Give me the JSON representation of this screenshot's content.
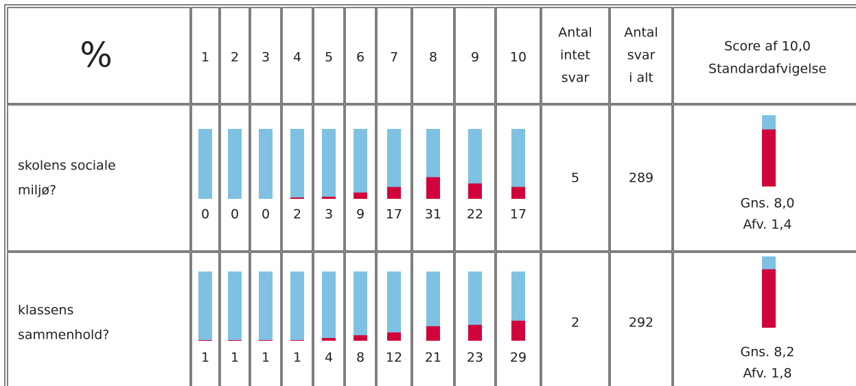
{
  "header": {
    "corner": "%",
    "scale": [
      1,
      2,
      3,
      4,
      5,
      6,
      7,
      8,
      9,
      10
    ],
    "no_answer": [
      "Antal",
      "intet",
      "svar"
    ],
    "total": [
      "Antal",
      "svar",
      "i alt"
    ],
    "score_max": {
      "value": 10,
      "label": "Score af 10,0"
    },
    "deviation": "Standardafvigelse"
  },
  "ylim": [
    0,
    100
  ],
  "rows": [
    {
      "label": [
        "skolens sociale",
        "miljø?"
      ],
      "values": [
        0,
        0,
        0,
        2,
        3,
        9,
        17,
        31,
        22,
        17
      ],
      "no_answer": 5,
      "total": 289,
      "mean": 8.0,
      "mean_label": "Gns. 8,0",
      "sd": 1.4,
      "sd_label": "Afv. 1,4"
    },
    {
      "label": [
        "klassens",
        "sammenhold?"
      ],
      "values": [
        1,
        1,
        1,
        1,
        4,
        8,
        12,
        21,
        23,
        29
      ],
      "no_answer": 2,
      "total": 292,
      "mean": 8.2,
      "mean_label": "Gns. 8,2",
      "sd": 1.8,
      "sd_label": "Afv. 1,8"
    }
  ]
}
